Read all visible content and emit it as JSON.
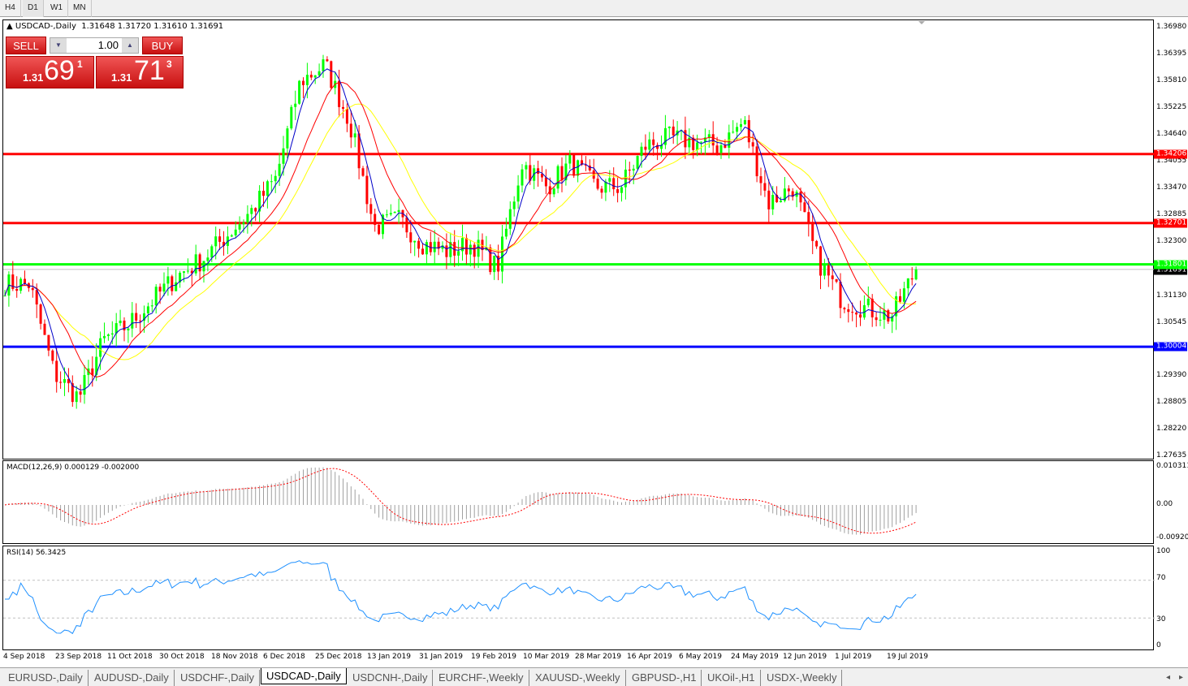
{
  "toolbar": {
    "timeframes": [
      "H4",
      "D1",
      "W1",
      "MN"
    ],
    "active": "D1"
  },
  "header": {
    "symbol": "USDCAD-,Daily",
    "ohlc": "1.31648 1.31720 1.31610 1.31691"
  },
  "trade_panel": {
    "sell_label": "SELL",
    "buy_label": "BUY",
    "lot": "1.00",
    "sell_prefix": "1.31",
    "sell_big": "69",
    "sell_sup": "1",
    "buy_prefix": "1.31",
    "buy_big": "71",
    "buy_sup": "3"
  },
  "price_axis": [
    "1.36980",
    "1.36395",
    "1.35810",
    "1.35225",
    "1.34640",
    "1.34055",
    "1.33470",
    "1.32885",
    "1.32300",
    "1.31130",
    "1.30545",
    "1.29390",
    "1.28805",
    "1.28220",
    "1.27635"
  ],
  "levels": [
    {
      "price": "1.34206",
      "color": "#ff0000"
    },
    {
      "price": "1.32701",
      "color": "#ff0000"
    },
    {
      "price": "1.31801",
      "color": "#00ff00"
    },
    {
      "price": "1.30004",
      "color": "#0000ff"
    }
  ],
  "current_price": "1.31691",
  "colors": {
    "bull": "#00ff00",
    "bear": "#ff0000",
    "ma_fast": "#0000c8",
    "ma_mid": "#ff0000",
    "ma_slow": "#ffff00",
    "macd_hist": "#a0a0a0",
    "macd_signal": "#ff0000",
    "rsi": "#1e90ff"
  },
  "series_closes": [
    1.3137,
    1.3137,
    1.2942,
    1.2889,
    1.3013,
    1.3048,
    1.3102,
    1.3155,
    1.319,
    1.3243,
    1.3296,
    1.3367,
    1.3579,
    1.3615,
    1.3491,
    1.3261,
    1.3278,
    1.3225,
    1.3208,
    1.3225,
    1.3172,
    1.3402,
    1.3349,
    1.3402,
    1.3349,
    1.3349,
    1.3438,
    1.3456,
    1.3447,
    1.3438,
    1.3491,
    1.3314,
    1.3349,
    1.319,
    1.3102,
    1.3084,
    1.3066,
    1.31691
  ],
  "macd": {
    "label": "MACD(12,26,9) 0.000129 -0.002000",
    "axis": [
      "0.010311",
      "0.00",
      "-0.009203"
    ]
  },
  "rsi": {
    "label": "RSI(14) 56.3425",
    "axis": [
      "100",
      "70",
      "30",
      "0"
    ]
  },
  "dates": [
    "4 Sep 2018",
    "23 Sep 2018",
    "11 Oct 2018",
    "30 Oct 2018",
    "18 Nov 2018",
    "6 Dec 2018",
    "25 Dec 2018",
    "13 Jan 2019",
    "31 Jan 2019",
    "19 Feb 2019",
    "10 Mar 2019",
    "28 Mar 2019",
    "16 Apr 2019",
    "6 May 2019",
    "24 May 2019",
    "12 Jun 2019",
    "1 Jul 2019",
    "19 Jul 2019"
  ],
  "tabs": [
    "EURUSD-,Daily",
    "AUDUSD-,Daily",
    "USDCHF-,Daily",
    "USDCAD-,Daily",
    "USDCNH-,Daily",
    "EURCHF-,Weekly",
    "XAUUSD-,Weekly",
    "GBPUSD-,H1",
    "UKOil-,H1",
    "USDX-,Weekly"
  ],
  "active_tab": "USDCAD-,Daily"
}
